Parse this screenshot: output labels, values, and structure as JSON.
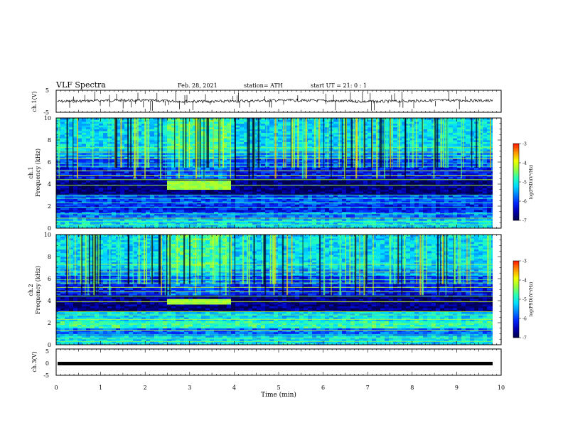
{
  "header": {
    "title": "VLF Spectra",
    "date": "Feb. 28, 2021",
    "station": "station= ATH",
    "start": "start  UT =   21: 0  : 1"
  },
  "colorbar": {
    "label": "log(PSD)(V²/Hz)",
    "ticks": [
      "-3",
      "-4",
      "-5",
      "-6",
      "-7"
    ],
    "colors": [
      "#000080",
      "#0000ff",
      "#00a0ff",
      "#00ffff",
      "#40ff80",
      "#a0ff40",
      "#ffff00",
      "#ff8000",
      "#ff0000",
      "#c00000"
    ]
  },
  "chart_data": [
    {
      "type": "line",
      "panel": "ch1-waveform",
      "ylabel": "ch.1(V)",
      "ylim": [
        -5,
        5
      ],
      "yticks": [
        "5",
        "-5"
      ],
      "x": [
        0,
        10
      ],
      "baseline": 0,
      "note_values": "dense noisy trace near 0 V with impulsive spikes"
    },
    {
      "type": "heatmap",
      "panel": "ch1-spectrogram",
      "ylabel_top": "ch.1",
      "ylabel": "Frequency (kHz)",
      "ylim": [
        0,
        10
      ],
      "yticks": [
        "0",
        "2",
        "4",
        "6",
        "8",
        "10"
      ],
      "xlim": [
        0,
        10
      ],
      "zlim": [
        -7,
        -3
      ],
      "event": {
        "t_start": 2.45,
        "t_end": 3.9,
        "f_low": 3.5,
        "f_high": 4.3
      }
    },
    {
      "type": "heatmap",
      "panel": "ch2-spectrogram",
      "ylabel_top": "ch.2",
      "ylabel": "Frequency (kHz)",
      "ylim": [
        0,
        10
      ],
      "yticks": [
        "0",
        "2",
        "4",
        "6",
        "8",
        "10"
      ],
      "xlim": [
        0,
        10
      ],
      "zlim": [
        -7,
        -3
      ],
      "event": {
        "t_start": 2.45,
        "t_end": 3.9,
        "f_low": 3.6,
        "f_high": 4.2
      }
    },
    {
      "type": "line",
      "panel": "ch3-waveform",
      "ylabel": "ch.3(V)",
      "ylim": [
        -5,
        5
      ],
      "yticks": [
        "5",
        "0",
        "-5"
      ],
      "x": [
        0,
        10
      ],
      "baseline": 0
    }
  ],
  "xaxis": {
    "label": "Time (min)",
    "ticks": [
      "0",
      "1",
      "2",
      "3",
      "4",
      "5",
      "6",
      "7",
      "8",
      "9",
      "10"
    ]
  }
}
